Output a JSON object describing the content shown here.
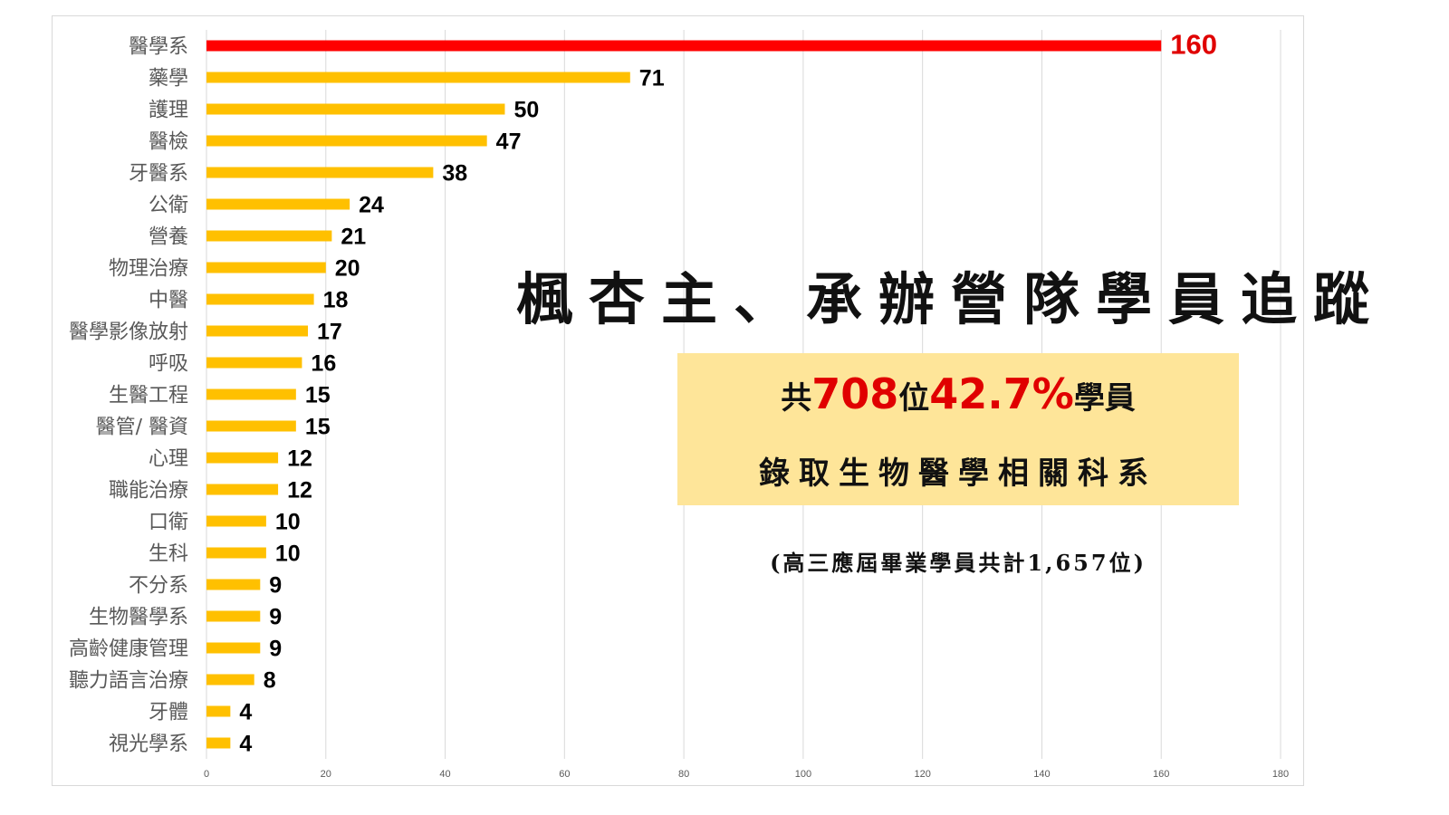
{
  "chart_data": {
    "type": "bar",
    "orientation": "horizontal",
    "categories": [
      "醫學系",
      "藥學",
      "護理",
      "醫檢",
      "牙醫系",
      "公衛",
      "營養",
      "物理治療",
      "中醫",
      "醫學影像放射",
      "呼吸",
      "生醫工程",
      "醫管/ 醫資",
      "心理",
      "職能治療",
      "口衛",
      "生科",
      "不分系",
      "生物醫學系",
      "高齡健康管理",
      "聽力語言治療",
      "牙體",
      "視光學系"
    ],
    "values": [
      160,
      71,
      50,
      47,
      38,
      24,
      21,
      20,
      18,
      17,
      16,
      15,
      15,
      12,
      12,
      10,
      10,
      9,
      9,
      9,
      8,
      4,
      4
    ],
    "xlim": [
      0,
      180
    ],
    "xticks": [
      "0",
      "20",
      "40",
      "60",
      "80",
      "100",
      "120",
      "140",
      "160",
      "180"
    ],
    "grid": true,
    "colors": {
      "highlight": "#ff0000",
      "bar": "#ffc000",
      "highlight_label": "#e00000"
    }
  },
  "overlay": {
    "title": "楓杏主、承辦營隊學員追蹤",
    "box": {
      "line1_prefix": "共",
      "count": "708",
      "line1_mid": "位",
      "percent": "42.7%",
      "line1_suffix": "學員",
      "line2": "錄取生物醫學相關科系"
    },
    "footnote": "(高三應屆畢業學員共計1,657位)",
    "box_color": "#fee599"
  }
}
